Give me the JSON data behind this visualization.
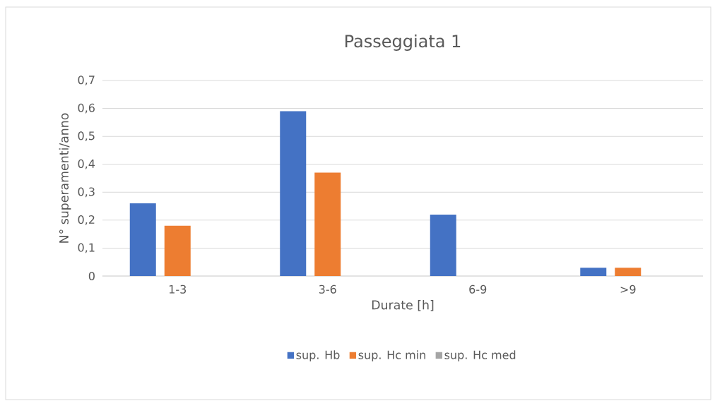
{
  "chart_data": {
    "type": "bar",
    "title": "Passeggiata 1",
    "xlabel": "Durate [h]",
    "ylabel": "N° superamenti/anno",
    "categories": [
      "1-3",
      "3-6",
      "6-9",
      ">9"
    ],
    "series": [
      {
        "name": "sup. Hb",
        "color": "#4472c4",
        "values": [
          0.26,
          0.59,
          0.22,
          0.03
        ]
      },
      {
        "name": "sup. Hc min",
        "color": "#ed7d31",
        "values": [
          0.18,
          0.37,
          0,
          0.03
        ]
      },
      {
        "name": "sup. Hc med",
        "color": "#a5a5a5",
        "values": [
          0,
          0,
          0,
          0
        ]
      }
    ],
    "ylim": [
      0,
      0.7
    ],
    "yticks": [
      0,
      {
        "value": 0.1,
        "label": "0,1"
      },
      {
        "value": 0.2,
        "label": "0,2"
      },
      {
        "value": 0.3,
        "label": "0,3"
      },
      {
        "value": 0.4,
        "label": "0,4"
      },
      {
        "value": 0.5,
        "label": "0,5"
      },
      {
        "value": 0.6,
        "label": "0,6"
      },
      {
        "value": 0.7,
        "label": "0,7"
      }
    ],
    "grid": "y",
    "legend": "bottom"
  }
}
